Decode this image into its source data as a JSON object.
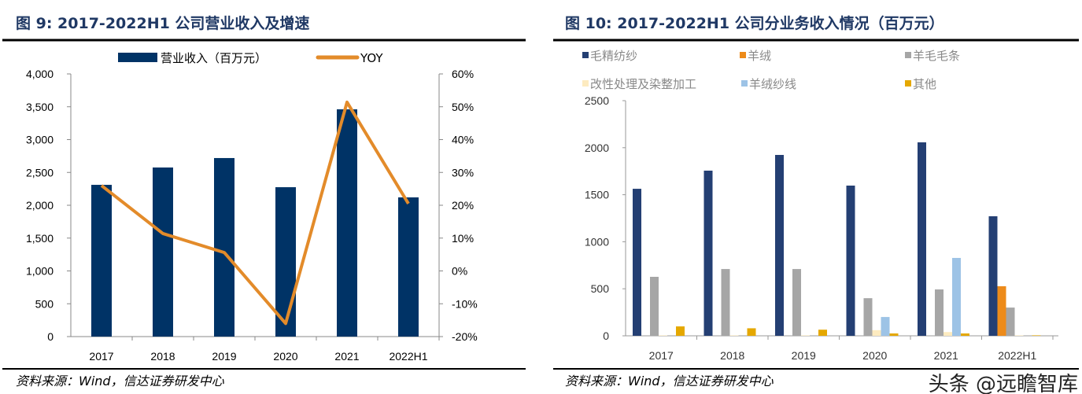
{
  "left": {
    "title": "图 9:    2017-2022H1 公司营业收入及增速",
    "source": "资料来源：Wind，信达证券研发中心"
  },
  "right": {
    "title": "图 10:  2017-2022H1 公司分业务收入情况（百万元）",
    "source": "资料来源：Wind，信达证券研发中心"
  },
  "watermark": "头条 @远瞻智库",
  "chart_data": [
    {
      "type": "bar+line",
      "categories": [
        "2017",
        "2018",
        "2019",
        "2020",
        "2021",
        "2022H1"
      ],
      "series": [
        {
          "name": "营业收入（百万元）",
          "type": "bar",
          "axis": "left",
          "color": "#003366",
          "values": [
            2311,
            2575,
            2719,
            2275,
            3461,
            2120
          ]
        },
        {
          "name": "YOY",
          "type": "line",
          "axis": "right",
          "color": "#e38b2a",
          "values": [
            26.0,
            11.4,
            5.6,
            -16.0,
            51.4,
            20.5
          ]
        }
      ],
      "ylim_left": [
        0,
        4000
      ],
      "yticks_left": [
        "0",
        "500",
        "1,000",
        "1,500",
        "2,000",
        "2,500",
        "3,000",
        "3,500",
        "4,000"
      ],
      "ylim_right": [
        -20,
        60
      ],
      "yticks_right": [
        "-20%",
        "-10%",
        "0%",
        "10%",
        "20%",
        "30%",
        "40%",
        "50%",
        "60%"
      ],
      "legend": "top",
      "grid": false
    },
    {
      "type": "bar",
      "categories": [
        "2017",
        "2018",
        "2019",
        "2020",
        "2021",
        "2022H1"
      ],
      "series": [
        {
          "name": "毛精纺纱",
          "color": "#243f73",
          "values": [
            1563,
            1756,
            1923,
            1597,
            2057,
            1271
          ]
        },
        {
          "name": "羊绒",
          "color": "#ed8b1a",
          "values": [
            0,
            0,
            0,
            0,
            0,
            527
          ]
        },
        {
          "name": "羊毛毛条",
          "color": "#a6a6a6",
          "values": [
            627,
            710,
            710,
            400,
            493,
            300
          ]
        },
        {
          "name": "改性处理及染整加工",
          "color": "#fdebc0",
          "values": [
            5,
            5,
            5,
            60,
            40,
            5
          ]
        },
        {
          "name": "羊绒纱线",
          "color": "#9dc3e6",
          "values": [
            0,
            0,
            0,
            200,
            828,
            0
          ]
        },
        {
          "name": "其他",
          "color": "#e5a800",
          "values": [
            100,
            80,
            65,
            25,
            25,
            5
          ]
        }
      ],
      "ylim": [
        0,
        2500
      ],
      "yticks": [
        "0",
        "500",
        "1000",
        "1500",
        "2000",
        "2500"
      ],
      "legend": "top",
      "grid": false
    }
  ]
}
